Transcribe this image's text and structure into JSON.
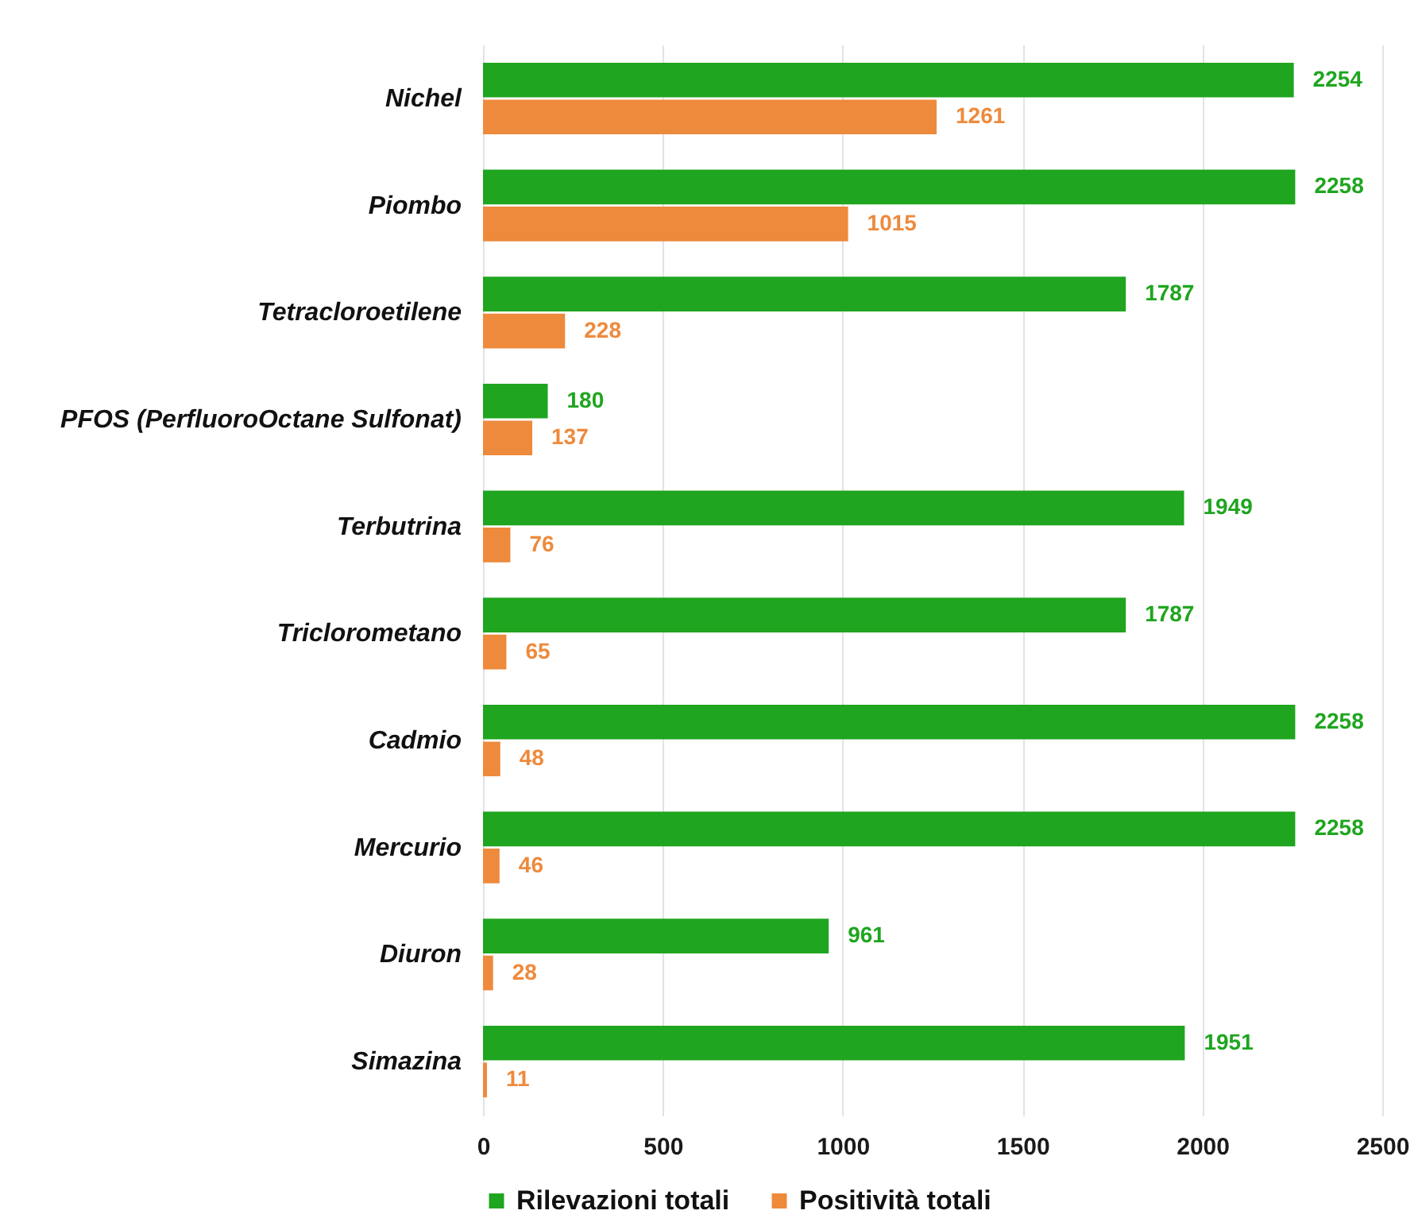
{
  "chart_data": {
    "type": "bar",
    "orientation": "horizontal",
    "categories": [
      "Nichel",
      "Piombo",
      "Tetracloroetilene",
      "PFOS (PerfluoroOctane Sulfonat)",
      "Terbutrina",
      "Triclorometano",
      "Cadmio",
      "Mercurio",
      "Diuron",
      "Simazina"
    ],
    "series": [
      {
        "name": "Rilevazioni totali",
        "color": "#1fa51f",
        "values": [
          2254,
          2258,
          1787,
          180,
          1949,
          1787,
          2258,
          2258,
          961,
          1951
        ]
      },
      {
        "name": "Positività totali",
        "color": "#ee8a3c",
        "values": [
          1261,
          1015,
          228,
          137,
          76,
          65,
          48,
          46,
          28,
          11
        ]
      }
    ],
    "xlim": [
      0,
      2500
    ],
    "xticks": [
      0,
      500,
      1000,
      1500,
      2000,
      2500
    ],
    "grid": "x",
    "legend": "bottom",
    "data_labels": true
  }
}
